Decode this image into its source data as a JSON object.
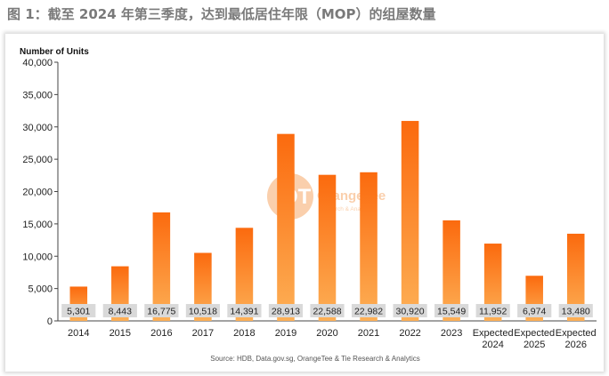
{
  "heading": "图 1：截至 2024 年第三季度，达到最低居住年限（MOP）的组屋数量",
  "watermark": {
    "brand": "OrangeTee",
    "sub": "Research & Analytics"
  },
  "source": "Source: HDB, Data.gov.sg, OrangeTee & Tie Research & Analytics",
  "colors": {
    "bar_top": "#fb6a0e",
    "bar_bottom": "#fdb056",
    "label_box": "#d9d9d9"
  },
  "chart_data": {
    "type": "bar",
    "title": "",
    "ylabel": "Number of Units",
    "xlabel": "",
    "ylim": [
      0,
      40000
    ],
    "yticks": [
      0,
      5000,
      10000,
      15000,
      20000,
      25000,
      30000,
      35000,
      40000
    ],
    "ytick_labels": [
      "0",
      "5,000",
      "10,000",
      "15,000",
      "20,000",
      "25,000",
      "30,000",
      "35,000",
      "40,000"
    ],
    "categories": [
      [
        "2014"
      ],
      [
        "2015"
      ],
      [
        "2016"
      ],
      [
        "2017"
      ],
      [
        "2018"
      ],
      [
        "2019"
      ],
      [
        "2020"
      ],
      [
        "2021"
      ],
      [
        "2022"
      ],
      [
        "2023"
      ],
      [
        "Expected",
        "2024"
      ],
      [
        "Expected",
        "2025"
      ],
      [
        "Expected",
        "2026"
      ]
    ],
    "values": [
      5301,
      8443,
      16775,
      10518,
      14391,
      28913,
      22588,
      22982,
      30920,
      15549,
      11952,
      6974,
      13480
    ],
    "value_labels": [
      "5,301",
      "8,443",
      "16,775",
      "10,518",
      "14,391",
      "28,913",
      "22,588",
      "22,982",
      "30,920",
      "15,549",
      "11,952",
      "6,974",
      "13,480"
    ],
    "grid": false,
    "legend": "none"
  }
}
